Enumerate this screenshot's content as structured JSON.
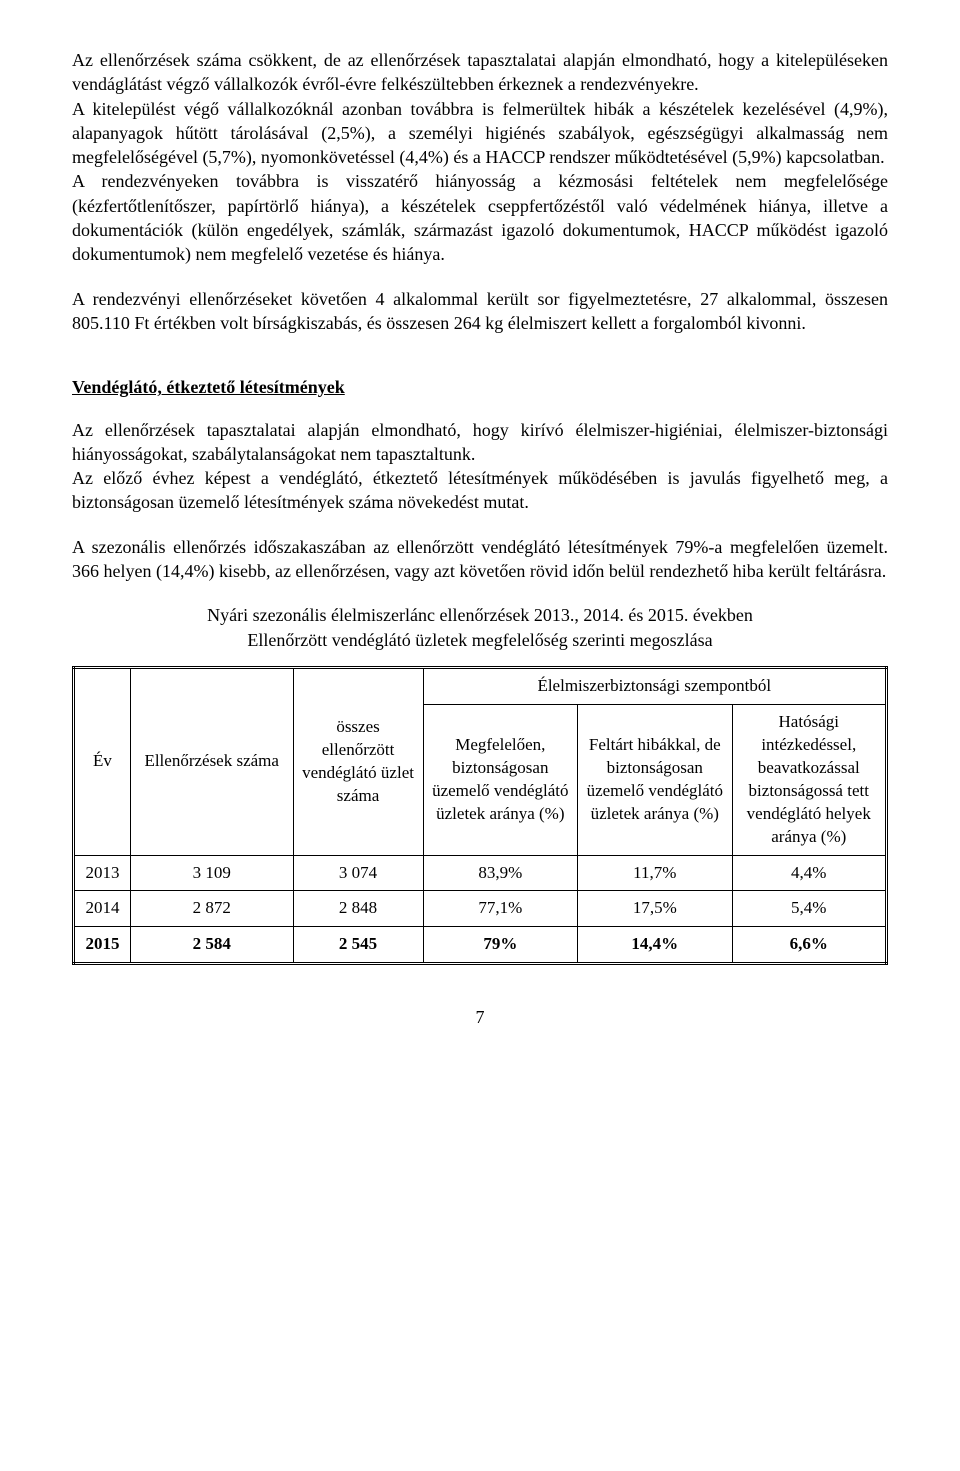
{
  "paragraphs": {
    "p1": "Az ellenőrzések száma csökkent, de az ellenőrzések tapasztalatai alapján elmondható, hogy a kitelepüléseken vendáglátást végző vállalkozók évről-évre felkészültebben érkeznek a rendezvényekre.",
    "p2": "A kitelepülést végő vállalkozóknál azonban továbbra is felmerültek hibák a készételek kezelésével (4,9%), alapanyagok hűtött tárolásával (2,5%), a személyi higiénés szabályok, egészségügyi alkalmasság nem megfelelőségével (5,7%), nyomonkövetéssel (4,4%) és a HACCP rendszer működtetésével (5,9%) kapcsolatban.",
    "p3": "A rendezvényeken továbbra is visszatérő hiányosság a kézmosási feltételek nem megfelelősége (kézfertőtlenítőszer, papírtörlő hiánya), a készételek cseppfertőzéstől való védelmének hiánya, illetve a dokumentációk (külön engedélyek, számlák, származást igazoló dokumentumok, HACCP működést igazoló dokumentumok) nem megfelelő vezetése és hiánya.",
    "p4": "A rendezvényi ellenőrzéseket követően 4 alkalommal került sor figyelmeztetésre, 27 alkalommal, összesen 805.110 Ft értékben volt bírságkiszabás, és összesen 264 kg élelmiszert kellett a forgalomból kivonni.",
    "p5": "Az ellenőrzések tapasztalatai alapján elmondható, hogy kirívó élelmiszer-higiéniai, élelmiszer-biztonsági hiányosságokat, szabálytalanságokat nem tapasztaltunk.",
    "p6": "Az előző évhez képest a vendéglátó, étkeztető létesítmények működésében is javulás figyelhető meg, a biztonságosan üzemelő létesítmények száma növekedést mutat.",
    "p7": "A szezonális ellenőrzés időszakaszában az ellenőrzött vendéglátó létesítmények 79%-a megfelelően üzemelt. 366 helyen (14,4%) kisebb, az ellenőrzésen, vagy azt követően rövid időn belül rendezhető hiba került feltárásra."
  },
  "section_heading": "Vendéglátó, étkeztető létesítmények",
  "table_title_line1": "Nyári szezonális élelmiszerlánc ellenőrzések 2013., 2014. és 2015. években",
  "table_title_line2": "Ellenőrzött vendéglátó üzletek megfelelőség szerinti megoszlása",
  "table": {
    "headers": {
      "ev": "Év",
      "ellenorzesek": "Ellenőrzések száma",
      "osszes": "összes ellenőrzött vendéglátó üzlet száma",
      "group": "Élelmiszerbiztonsági szempontból",
      "sub1": "Megfelelően, biztonságosan üzemelő vendéglátó üzletek aránya (%)",
      "sub2": "Feltárt hibákkal, de biztonságosan üzemelő vendéglátó üzletek aránya (%)",
      "sub3": "Hatósági intézkedéssel, beavatkozással biztonságossá tett vendéglátó helyek aránya (%)"
    },
    "rows": [
      {
        "ev": "2013",
        "ell": "3 109",
        "osz": "3 074",
        "c1": "83,9%",
        "c2": "11,7%",
        "c3": "4,4%"
      },
      {
        "ev": "2014",
        "ell": "2 872",
        "osz": "2 848",
        "c1": "77,1%",
        "c2": "17,5%",
        "c3": "5,4%"
      },
      {
        "ev": "2015",
        "ell": "2 584",
        "osz": "2 545",
        "c1": "79%",
        "c2": "14,4%",
        "c3": "6,6%"
      }
    ]
  },
  "page_number": "7"
}
